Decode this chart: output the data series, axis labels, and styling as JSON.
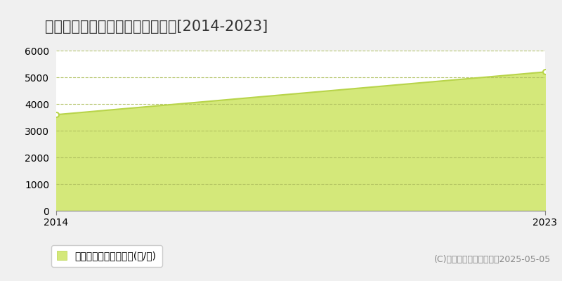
{
  "title": "郡上市白鳥町長溧　農地価格推移[2014-2023]",
  "years": [
    2014,
    2023
  ],
  "values": [
    3600,
    5200
  ],
  "ylim": [
    0,
    6000
  ],
  "yticks": [
    0,
    1000,
    2000,
    3000,
    4000,
    5000,
    6000
  ],
  "xlim": [
    2014,
    2023
  ],
  "xticks": [
    2014,
    2023
  ],
  "line_color": "#b8d44a",
  "fill_color": "#d4e87a",
  "marker_color": "#b8d44a",
  "marker_face": "#ffffff",
  "grid_color": "#b0c060",
  "background_color": "#f0f0f0",
  "plot_bg_color": "#ffffff",
  "legend_label": "農地価格　平均嵪単価(円/嵪)",
  "copyright_text": "(C)土地価格ドットコム　2025-05-05",
  "title_fontsize": 15,
  "tick_fontsize": 10,
  "legend_fontsize": 10,
  "copyright_fontsize": 9
}
